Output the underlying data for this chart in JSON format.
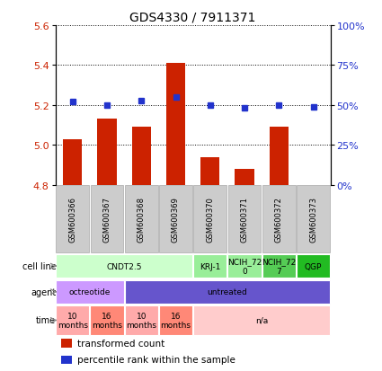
{
  "title": "GDS4330 / 7911371",
  "samples": [
    "GSM600366",
    "GSM600367",
    "GSM600368",
    "GSM600369",
    "GSM600370",
    "GSM600371",
    "GSM600372",
    "GSM600373"
  ],
  "bar_values": [
    5.03,
    5.13,
    5.09,
    5.41,
    4.94,
    4.88,
    5.09,
    4.8
  ],
  "dot_percentiles": [
    52,
    50,
    53,
    55,
    50,
    48,
    50,
    49
  ],
  "ylim": [
    4.8,
    5.6
  ],
  "y2lim": [
    0,
    100
  ],
  "yticks": [
    4.8,
    5.0,
    5.2,
    5.4,
    5.6
  ],
  "y2ticks": [
    0,
    25,
    50,
    75,
    100
  ],
  "y2ticklabels": [
    "0%",
    "25%",
    "50%",
    "75%",
    "100%"
  ],
  "bar_color": "#cc2200",
  "dot_color": "#2233cc",
  "bar_bottom": 4.8,
  "cell_lines": [
    {
      "label": "CNDT2.5",
      "start": 0,
      "end": 4,
      "color": "#ccffcc"
    },
    {
      "label": "KRJ-1",
      "start": 4,
      "end": 5,
      "color": "#99ee99"
    },
    {
      "label": "NCIH_72\n0",
      "start": 5,
      "end": 6,
      "color": "#99ee99"
    },
    {
      "label": "NCIH_72\n7",
      "start": 6,
      "end": 7,
      "color": "#55cc55"
    },
    {
      "label": "QGP",
      "start": 7,
      "end": 8,
      "color": "#22bb22"
    }
  ],
  "agents": [
    {
      "label": "octreotide",
      "start": 0,
      "end": 2,
      "color": "#cc99ff",
      "text_color": "black"
    },
    {
      "label": "untreated",
      "start": 2,
      "end": 8,
      "color": "#6655cc",
      "text_color": "black"
    }
  ],
  "times": [
    {
      "label": "10\nmonths",
      "start": 0,
      "end": 1,
      "color": "#ffaaaa"
    },
    {
      "label": "16\nmonths",
      "start": 1,
      "end": 2,
      "color": "#ff8877"
    },
    {
      "label": "10\nmonths",
      "start": 2,
      "end": 3,
      "color": "#ffaaaa"
    },
    {
      "label": "16\nmonths",
      "start": 3,
      "end": 4,
      "color": "#ff8877"
    },
    {
      "label": "n/a",
      "start": 4,
      "end": 8,
      "color": "#ffcccc"
    }
  ],
  "row_labels": [
    "cell line",
    "agent",
    "time"
  ],
  "legend_bar_label": "transformed count",
  "legend_dot_label": "percentile rank within the sample",
  "sample_box_color": "#cccccc",
  "sample_box_edge": "#aaaaaa"
}
